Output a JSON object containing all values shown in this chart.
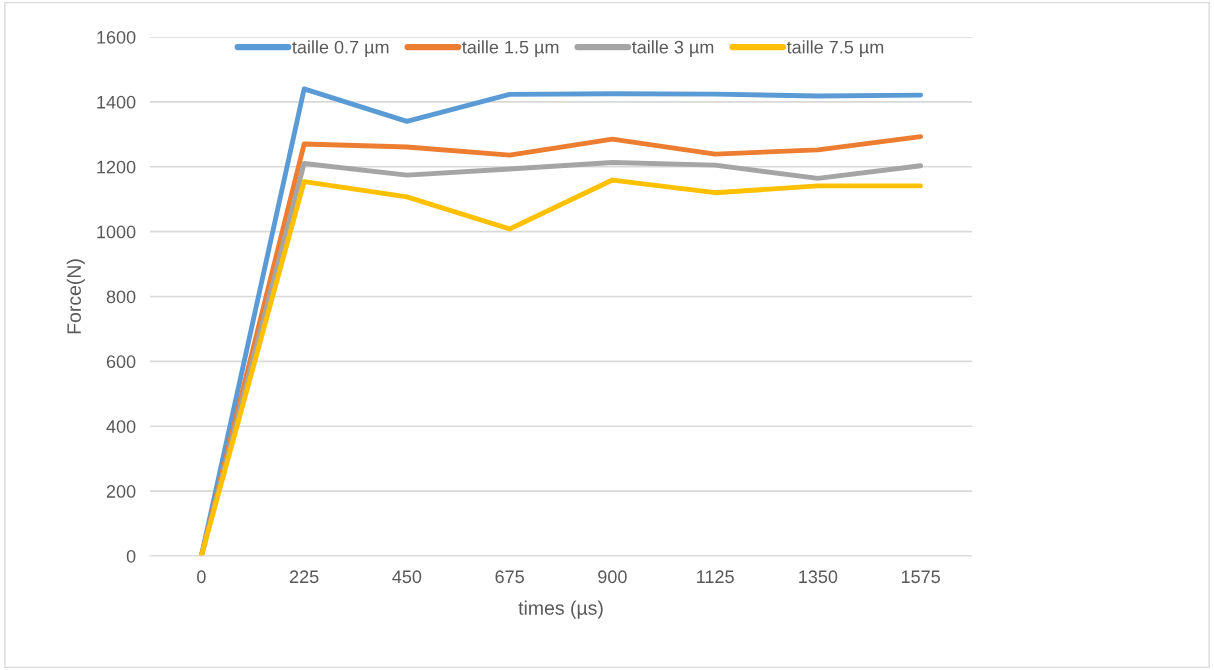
{
  "chart_data": {
    "type": "line",
    "xlabel": "times (µs)",
    "ylabel": "Force(N)",
    "categories": [
      "0",
      "225",
      "450",
      "675",
      "900",
      "1125",
      "1350",
      "1575"
    ],
    "series": [
      {
        "name": "taille 0.7 µm",
        "color": "#5b9bd5",
        "values": [
          0,
          1440,
          1340,
          1423,
          1425,
          1424,
          1418,
          1421
        ]
      },
      {
        "name": "taille 1.5 µm",
        "color": "#ed7d31",
        "values": [
          0,
          1270,
          1261,
          1236,
          1285,
          1239,
          1252,
          1293
        ]
      },
      {
        "name": "taille 3 µm",
        "color": "#a5a5a5",
        "values": [
          0,
          1210,
          1174,
          1193,
          1213,
          1205,
          1164,
          1203
        ]
      },
      {
        "name": "taille 7.5 µm",
        "color": "#ffc000",
        "values": [
          0,
          1154,
          1107,
          1008,
          1159,
          1120,
          1141,
          1141
        ]
      }
    ],
    "ylim": [
      0,
      1600
    ],
    "yticks": [
      0,
      200,
      400,
      600,
      800,
      1000,
      1200,
      1400,
      1600
    ],
    "grid": "y",
    "legend": "top",
    "line_style": "solid",
    "marker": "none"
  }
}
